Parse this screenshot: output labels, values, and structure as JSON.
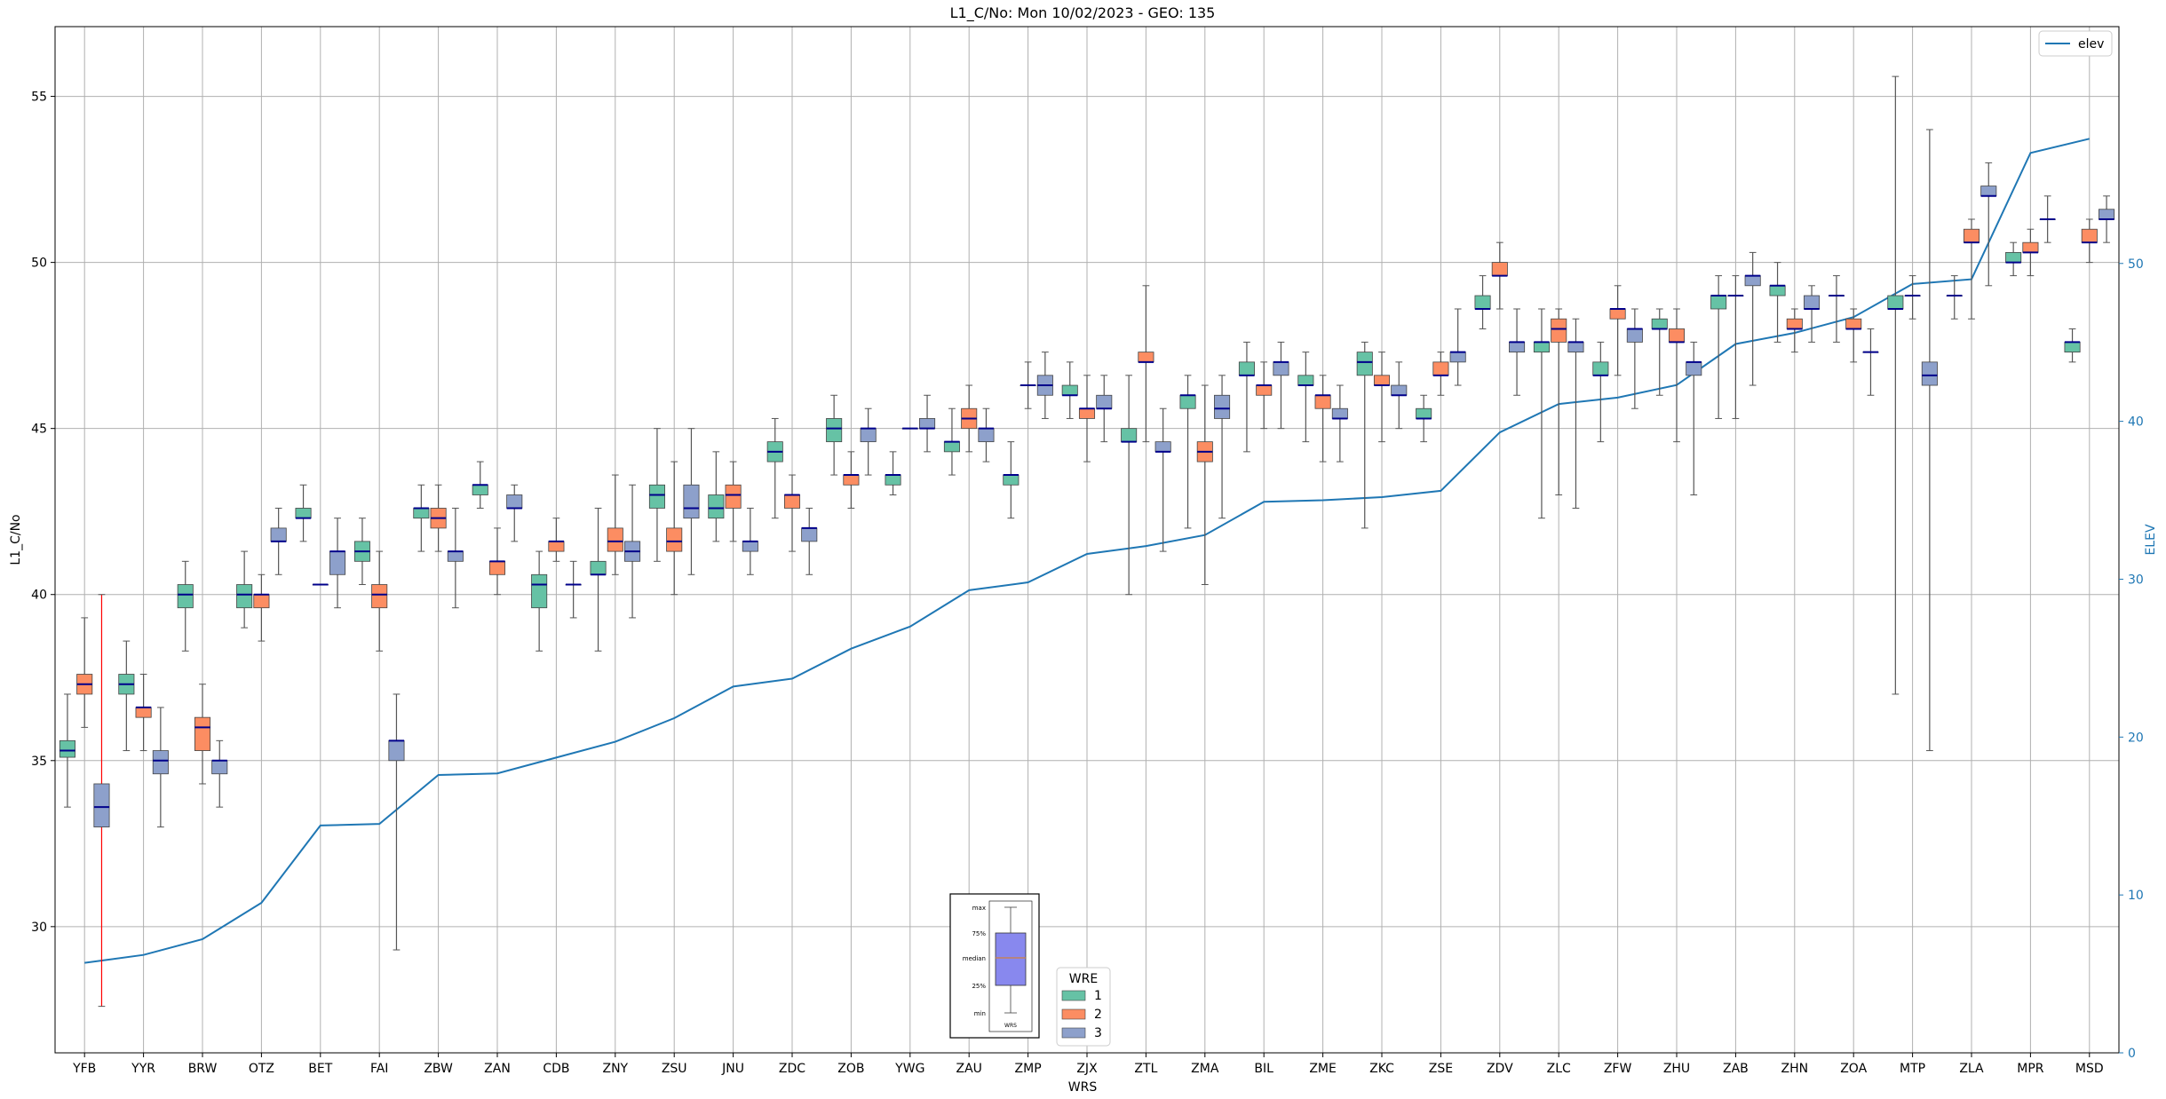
{
  "chart_data": {
    "type": "boxplot",
    "title": "L1_C/No: Mon 10/02/2023 - GEO: 135",
    "xlabel": "WRS",
    "ylabel": "L1_C/No",
    "ylabel_right": "ELEV",
    "ylim": [
      26.2,
      57.1
    ],
    "ylim_right": [
      0,
      65
    ],
    "yticks": [
      30,
      35,
      40,
      45,
      50,
      55
    ],
    "yticks_right": [
      0,
      10,
      20,
      30,
      40,
      50
    ],
    "grid": true,
    "colors": {
      "wre1": "#66c2a5",
      "wre2": "#fc8d62",
      "wre3": "#8da0cb",
      "elev": "#1f77b4",
      "median": "#00008b",
      "outlier_whisker": "#ff0000"
    },
    "legend_elev": {
      "label": "elev",
      "placement": "top-right"
    },
    "legend_wre": {
      "title": "WRE",
      "entries": [
        "1",
        "2",
        "3"
      ],
      "placement": "bottom-center"
    },
    "inset_key": {
      "labels": [
        "max",
        "75%",
        "median",
        "25%",
        "min"
      ],
      "xlabel": "WRS"
    },
    "categories": [
      "YFB",
      "YYR",
      "BRW",
      "OTZ",
      "BET",
      "FAI",
      "ZBW",
      "ZAN",
      "CDB",
      "ZNY",
      "ZSU",
      "JNU",
      "ZDC",
      "ZOB",
      "YWG",
      "ZAU",
      "ZMP",
      "ZJX",
      "ZTL",
      "ZMA",
      "BIL",
      "ZME",
      "ZKC",
      "ZSE",
      "ZDV",
      "ZLC",
      "ZFW",
      "ZHU",
      "ZAB",
      "ZHN",
      "ZOA",
      "MTP",
      "ZLA",
      "MPR",
      "MSD"
    ],
    "elev": [
      5.7,
      6.2,
      7.2,
      9.5,
      14.4,
      14.5,
      17.6,
      17.7,
      18.7,
      19.7,
      21.2,
      23.2,
      23.7,
      25.6,
      27.0,
      29.3,
      29.8,
      31.6,
      32.1,
      32.8,
      34.9,
      35.0,
      35.2,
      35.6,
      39.3,
      41.1,
      41.5,
      42.3,
      44.9,
      45.6,
      46.6,
      48.7,
      49.0,
      57.0,
      57.9
    ],
    "boxes": [
      {
        "wrs": "YFB",
        "wre": 1,
        "min": 33.6,
        "q1": 35.1,
        "median": 35.3,
        "q3": 35.6,
        "max": 37.0
      },
      {
        "wrs": "YFB",
        "wre": 2,
        "min": 36.0,
        "q1": 37.0,
        "median": 37.3,
        "q3": 37.6,
        "max": 39.3
      },
      {
        "wrs": "YFB",
        "wre": 3,
        "min": 27.6,
        "q1": 33.0,
        "median": 33.6,
        "q3": 34.3,
        "max": 40.0,
        "whisker_color": "red"
      },
      {
        "wrs": "YYR",
        "wre": 1,
        "min": 35.3,
        "q1": 37.0,
        "median": 37.3,
        "q3": 37.6,
        "max": 38.6
      },
      {
        "wrs": "YYR",
        "wre": 2,
        "min": 35.3,
        "q1": 36.3,
        "median": 36.6,
        "q3": 36.6,
        "max": 37.6
      },
      {
        "wrs": "YYR",
        "wre": 3,
        "min": 33.0,
        "q1": 34.6,
        "median": 35.0,
        "q3": 35.3,
        "max": 36.6
      },
      {
        "wrs": "BRW",
        "wre": 1,
        "min": 38.3,
        "q1": 39.6,
        "median": 40.0,
        "q3": 40.3,
        "max": 41.0
      },
      {
        "wrs": "BRW",
        "wre": 2,
        "min": 34.3,
        "q1": 35.3,
        "median": 36.0,
        "q3": 36.3,
        "max": 37.3
      },
      {
        "wrs": "BRW",
        "wre": 3,
        "min": 33.6,
        "q1": 34.6,
        "median": 35.0,
        "q3": 35.0,
        "max": 35.6
      },
      {
        "wrs": "OTZ",
        "wre": 1,
        "min": 39.0,
        "q1": 39.6,
        "median": 40.0,
        "q3": 40.3,
        "max": 41.3
      },
      {
        "wrs": "OTZ",
        "wre": 2,
        "min": 38.6,
        "q1": 39.6,
        "median": 40.0,
        "q3": 40.0,
        "max": 40.6
      },
      {
        "wrs": "OTZ",
        "wre": 3,
        "min": 40.6,
        "q1": 41.6,
        "median": 41.6,
        "q3": 42.0,
        "max": 42.6
      },
      {
        "wrs": "BET",
        "wre": 1,
        "min": 41.6,
        "q1": 42.3,
        "median": 42.3,
        "q3": 42.6,
        "max": 43.3
      },
      {
        "wrs": "BET",
        "wre": 2,
        "min": 40.3,
        "q1": 40.3,
        "median": 40.3,
        "q3": 40.3,
        "max": 40.3
      },
      {
        "wrs": "BET",
        "wre": 3,
        "min": 39.6,
        "q1": 40.6,
        "median": 41.3,
        "q3": 41.3,
        "max": 42.3
      },
      {
        "wrs": "FAI",
        "wre": 1,
        "min": 40.3,
        "q1": 41.0,
        "median": 41.3,
        "q3": 41.6,
        "max": 42.3
      },
      {
        "wrs": "FAI",
        "wre": 2,
        "min": 38.3,
        "q1": 39.6,
        "median": 40.0,
        "q3": 40.3,
        "max": 41.3
      },
      {
        "wrs": "FAI",
        "wre": 3,
        "min": 29.3,
        "q1": 35.0,
        "median": 35.6,
        "q3": 35.6,
        "max": 37.0
      },
      {
        "wrs": "ZBW",
        "wre": 1,
        "min": 41.3,
        "q1": 42.3,
        "median": 42.6,
        "q3": 42.6,
        "max": 43.3
      },
      {
        "wrs": "ZBW",
        "wre": 2,
        "min": 41.3,
        "q1": 42.0,
        "median": 42.3,
        "q3": 42.6,
        "max": 43.3
      },
      {
        "wrs": "ZBW",
        "wre": 3,
        "min": 39.6,
        "q1": 41.0,
        "median": 41.3,
        "q3": 41.3,
        "max": 42.6
      },
      {
        "wrs": "ZAN",
        "wre": 1,
        "min": 42.6,
        "q1": 43.0,
        "median": 43.3,
        "q3": 43.3,
        "max": 44.0
      },
      {
        "wrs": "ZAN",
        "wre": 2,
        "min": 40.0,
        "q1": 40.6,
        "median": 41.0,
        "q3": 41.0,
        "max": 42.0
      },
      {
        "wrs": "ZAN",
        "wre": 3,
        "min": 41.6,
        "q1": 42.6,
        "median": 42.6,
        "q3": 43.0,
        "max": 43.3
      },
      {
        "wrs": "CDB",
        "wre": 1,
        "min": 38.3,
        "q1": 39.6,
        "median": 40.3,
        "q3": 40.6,
        "max": 41.3
      },
      {
        "wrs": "CDB",
        "wre": 2,
        "min": 41.0,
        "q1": 41.3,
        "median": 41.6,
        "q3": 41.6,
        "max": 42.3
      },
      {
        "wrs": "CDB",
        "wre": 3,
        "min": 39.3,
        "q1": 40.3,
        "median": 40.3,
        "q3": 40.3,
        "max": 41.0
      },
      {
        "wrs": "ZNY",
        "wre": 1,
        "min": 38.3,
        "q1": 40.6,
        "median": 40.6,
        "q3": 41.0,
        "max": 42.6
      },
      {
        "wrs": "ZNY",
        "wre": 2,
        "min": 40.6,
        "q1": 41.3,
        "median": 41.6,
        "q3": 42.0,
        "max": 43.6
      },
      {
        "wrs": "ZNY",
        "wre": 3,
        "min": 39.3,
        "q1": 41.0,
        "median": 41.3,
        "q3": 41.6,
        "max": 43.3
      },
      {
        "wrs": "ZSU",
        "wre": 1,
        "min": 41.0,
        "q1": 42.6,
        "median": 43.0,
        "q3": 43.3,
        "max": 45.0
      },
      {
        "wrs": "ZSU",
        "wre": 2,
        "min": 40.0,
        "q1": 41.3,
        "median": 41.6,
        "q3": 42.0,
        "max": 44.0
      },
      {
        "wrs": "ZSU",
        "wre": 3,
        "min": 40.6,
        "q1": 42.3,
        "median": 42.6,
        "q3": 43.3,
        "max": 45.0
      },
      {
        "wrs": "JNU",
        "wre": 1,
        "min": 41.6,
        "q1": 42.3,
        "median": 42.6,
        "q3": 43.0,
        "max": 44.3
      },
      {
        "wrs": "JNU",
        "wre": 2,
        "min": 41.6,
        "q1": 42.6,
        "median": 43.0,
        "q3": 43.3,
        "max": 44.0
      },
      {
        "wrs": "JNU",
        "wre": 3,
        "min": 40.6,
        "q1": 41.3,
        "median": 41.6,
        "q3": 41.6,
        "max": 42.6
      },
      {
        "wrs": "ZDC",
        "wre": 1,
        "min": 42.3,
        "q1": 44.0,
        "median": 44.3,
        "q3": 44.6,
        "max": 45.3
      },
      {
        "wrs": "ZDC",
        "wre": 2,
        "min": 41.3,
        "q1": 42.6,
        "median": 43.0,
        "q3": 43.0,
        "max": 43.6
      },
      {
        "wrs": "ZDC",
        "wre": 3,
        "min": 40.6,
        "q1": 41.6,
        "median": 42.0,
        "q3": 42.0,
        "max": 42.6
      },
      {
        "wrs": "ZOB",
        "wre": 1,
        "min": 43.6,
        "q1": 44.6,
        "median": 45.0,
        "q3": 45.3,
        "max": 46.0
      },
      {
        "wrs": "ZOB",
        "wre": 2,
        "min": 42.6,
        "q1": 43.3,
        "median": 43.6,
        "q3": 43.6,
        "max": 44.3
      },
      {
        "wrs": "ZOB",
        "wre": 3,
        "min": 43.6,
        "q1": 44.6,
        "median": 45.0,
        "q3": 45.0,
        "max": 45.6
      },
      {
        "wrs": "YWG",
        "wre": 1,
        "min": 43.0,
        "q1": 43.3,
        "median": 43.6,
        "q3": 43.6,
        "max": 44.3
      },
      {
        "wrs": "YWG",
        "wre": 2,
        "min": 45.0,
        "q1": 45.0,
        "median": 45.0,
        "q3": 45.0,
        "max": 45.0
      },
      {
        "wrs": "YWG",
        "wre": 3,
        "min": 44.3,
        "q1": 45.0,
        "median": 45.0,
        "q3": 45.3,
        "max": 46.0
      },
      {
        "wrs": "ZAU",
        "wre": 1,
        "min": 43.6,
        "q1": 44.3,
        "median": 44.6,
        "q3": 44.6,
        "max": 45.6
      },
      {
        "wrs": "ZAU",
        "wre": 2,
        "min": 44.3,
        "q1": 45.0,
        "median": 45.3,
        "q3": 45.6,
        "max": 46.3
      },
      {
        "wrs": "ZAU",
        "wre": 3,
        "min": 44.0,
        "q1": 44.6,
        "median": 45.0,
        "q3": 45.0,
        "max": 45.6
      },
      {
        "wrs": "ZMP",
        "wre": 1,
        "min": 42.3,
        "q1": 43.3,
        "median": 43.6,
        "q3": 43.6,
        "max": 44.6
      },
      {
        "wrs": "ZMP",
        "wre": 2,
        "min": 45.6,
        "q1": 46.3,
        "median": 46.3,
        "q3": 46.3,
        "max": 47.0
      },
      {
        "wrs": "ZMP",
        "wre": 3,
        "min": 45.3,
        "q1": 46.0,
        "median": 46.3,
        "q3": 46.6,
        "max": 47.3
      },
      {
        "wrs": "ZJX",
        "wre": 1,
        "min": 45.3,
        "q1": 46.0,
        "median": 46.0,
        "q3": 46.3,
        "max": 47.0
      },
      {
        "wrs": "ZJX",
        "wre": 2,
        "min": 44.0,
        "q1": 45.3,
        "median": 45.6,
        "q3": 45.6,
        "max": 46.6
      },
      {
        "wrs": "ZJX",
        "wre": 3,
        "min": 44.6,
        "q1": 45.6,
        "median": 45.6,
        "q3": 46.0,
        "max": 46.6
      },
      {
        "wrs": "ZTL",
        "wre": 1,
        "min": 40.0,
        "q1": 44.6,
        "median": 44.6,
        "q3": 45.0,
        "max": 46.6
      },
      {
        "wrs": "ZTL",
        "wre": 2,
        "min": 44.6,
        "q1": 47.0,
        "median": 47.0,
        "q3": 47.3,
        "max": 49.3
      },
      {
        "wrs": "ZTL",
        "wre": 3,
        "min": 41.3,
        "q1": 44.3,
        "median": 44.3,
        "q3": 44.6,
        "max": 45.6
      },
      {
        "wrs": "ZMA",
        "wre": 1,
        "min": 42.0,
        "q1": 45.6,
        "median": 46.0,
        "q3": 46.0,
        "max": 46.6
      },
      {
        "wrs": "ZMA",
        "wre": 2,
        "min": 40.3,
        "q1": 44.0,
        "median": 44.3,
        "q3": 44.6,
        "max": 46.3
      },
      {
        "wrs": "ZMA",
        "wre": 3,
        "min": 42.3,
        "q1": 45.3,
        "median": 45.6,
        "q3": 46.0,
        "max": 46.6
      },
      {
        "wrs": "BIL",
        "wre": 1,
        "min": 44.3,
        "q1": 46.6,
        "median": 46.6,
        "q3": 47.0,
        "max": 47.6
      },
      {
        "wrs": "BIL",
        "wre": 2,
        "min": 45.0,
        "q1": 46.0,
        "median": 46.3,
        "q3": 46.3,
        "max": 47.0
      },
      {
        "wrs": "BIL",
        "wre": 3,
        "min": 45.0,
        "q1": 46.6,
        "median": 47.0,
        "q3": 47.0,
        "max": 47.6
      },
      {
        "wrs": "ZME",
        "wre": 1,
        "min": 44.6,
        "q1": 46.3,
        "median": 46.3,
        "q3": 46.6,
        "max": 47.3
      },
      {
        "wrs": "ZME",
        "wre": 2,
        "min": 44.0,
        "q1": 45.6,
        "median": 46.0,
        "q3": 46.0,
        "max": 46.6
      },
      {
        "wrs": "ZME",
        "wre": 3,
        "min": 44.0,
        "q1": 45.3,
        "median": 45.3,
        "q3": 45.6,
        "max": 46.3
      },
      {
        "wrs": "ZKC",
        "wre": 1,
        "min": 42.0,
        "q1": 46.6,
        "median": 47.0,
        "q3": 47.3,
        "max": 47.6
      },
      {
        "wrs": "ZKC",
        "wre": 2,
        "min": 44.6,
        "q1": 46.3,
        "median": 46.3,
        "q3": 46.6,
        "max": 47.3
      },
      {
        "wrs": "ZKC",
        "wre": 3,
        "min": 45.0,
        "q1": 46.0,
        "median": 46.0,
        "q3": 46.3,
        "max": 47.0
      },
      {
        "wrs": "ZSE",
        "wre": 1,
        "min": 44.6,
        "q1": 45.3,
        "median": 45.3,
        "q3": 45.6,
        "max": 46.0
      },
      {
        "wrs": "ZSE",
        "wre": 2,
        "min": 46.0,
        "q1": 46.6,
        "median": 46.6,
        "q3": 47.0,
        "max": 47.3
      },
      {
        "wrs": "ZSE",
        "wre": 3,
        "min": 46.3,
        "q1": 47.0,
        "median": 47.3,
        "q3": 47.3,
        "max": 48.6
      },
      {
        "wrs": "ZDV",
        "wre": 1,
        "min": 48.0,
        "q1": 48.6,
        "median": 48.6,
        "q3": 49.0,
        "max": 49.6
      },
      {
        "wrs": "ZDV",
        "wre": 2,
        "min": 48.6,
        "q1": 49.6,
        "median": 49.6,
        "q3": 50.0,
        "max": 50.6
      },
      {
        "wrs": "ZDV",
        "wre": 3,
        "min": 46.0,
        "q1": 47.3,
        "median": 47.6,
        "q3": 47.6,
        "max": 48.6
      },
      {
        "wrs": "ZLC",
        "wre": 1,
        "min": 42.3,
        "q1": 47.3,
        "median": 47.6,
        "q3": 47.6,
        "max": 48.6
      },
      {
        "wrs": "ZLC",
        "wre": 2,
        "min": 43.0,
        "q1": 47.6,
        "median": 48.0,
        "q3": 48.3,
        "max": 48.6
      },
      {
        "wrs": "ZLC",
        "wre": 3,
        "min": 42.6,
        "q1": 47.3,
        "median": 47.6,
        "q3": 47.6,
        "max": 48.3
      },
      {
        "wrs": "ZFW",
        "wre": 1,
        "min": 44.6,
        "q1": 46.6,
        "median": 46.6,
        "q3": 47.0,
        "max": 47.6
      },
      {
        "wrs": "ZFW",
        "wre": 2,
        "min": 46.6,
        "q1": 48.3,
        "median": 48.6,
        "q3": 48.6,
        "max": 49.3
      },
      {
        "wrs": "ZFW",
        "wre": 3,
        "min": 45.6,
        "q1": 47.6,
        "median": 48.0,
        "q3": 48.0,
        "max": 48.6
      },
      {
        "wrs": "ZHU",
        "wre": 1,
        "min": 46.0,
        "q1": 48.0,
        "median": 48.0,
        "q3": 48.3,
        "max": 48.6
      },
      {
        "wrs": "ZHU",
        "wre": 2,
        "min": 44.6,
        "q1": 47.6,
        "median": 47.6,
        "q3": 48.0,
        "max": 48.6
      },
      {
        "wrs": "ZHU",
        "wre": 3,
        "min": 43.0,
        "q1": 46.6,
        "median": 47.0,
        "q3": 47.0,
        "max": 47.6
      },
      {
        "wrs": "ZAB",
        "wre": 1,
        "min": 45.3,
        "q1": 48.6,
        "median": 49.0,
        "q3": 49.0,
        "max": 49.6
      },
      {
        "wrs": "ZAB",
        "wre": 2,
        "min": 45.3,
        "q1": 49.0,
        "median": 49.0,
        "q3": 49.0,
        "max": 49.6
      },
      {
        "wrs": "ZAB",
        "wre": 3,
        "min": 46.3,
        "q1": 49.3,
        "median": 49.6,
        "q3": 49.6,
        "max": 50.3
      },
      {
        "wrs": "ZHN",
        "wre": 1,
        "min": 47.6,
        "q1": 49.0,
        "median": 49.3,
        "q3": 49.3,
        "max": 50.0
      },
      {
        "wrs": "ZHN",
        "wre": 2,
        "min": 47.3,
        "q1": 48.0,
        "median": 48.0,
        "q3": 48.3,
        "max": 48.6
      },
      {
        "wrs": "ZHN",
        "wre": 3,
        "min": 47.6,
        "q1": 48.6,
        "median": 48.6,
        "q3": 49.0,
        "max": 49.3
      },
      {
        "wrs": "ZOA",
        "wre": 1,
        "min": 47.6,
        "q1": 49.0,
        "median": 49.0,
        "q3": 49.0,
        "max": 49.6
      },
      {
        "wrs": "ZOA",
        "wre": 2,
        "min": 47.0,
        "q1": 48.0,
        "median": 48.0,
        "q3": 48.3,
        "max": 48.6
      },
      {
        "wrs": "ZOA",
        "wre": 3,
        "min": 46.0,
        "q1": 47.3,
        "median": 47.3,
        "q3": 47.3,
        "max": 48.0
      },
      {
        "wrs": "MTP",
        "wre": 1,
        "min": 37.0,
        "q1": 48.6,
        "median": 48.6,
        "q3": 49.0,
        "max": 55.6
      },
      {
        "wrs": "MTP",
        "wre": 2,
        "min": 48.3,
        "q1": 49.0,
        "median": 49.0,
        "q3": 49.0,
        "max": 49.6
      },
      {
        "wrs": "MTP",
        "wre": 3,
        "min": 35.3,
        "q1": 46.3,
        "median": 46.6,
        "q3": 47.0,
        "max": 54.0
      },
      {
        "wrs": "ZLA",
        "wre": 1,
        "min": 48.3,
        "q1": 49.0,
        "median": 49.0,
        "q3": 49.0,
        "max": 49.6
      },
      {
        "wrs": "ZLA",
        "wre": 2,
        "min": 48.3,
        "q1": 50.6,
        "median": 50.6,
        "q3": 51.0,
        "max": 51.3
      },
      {
        "wrs": "ZLA",
        "wre": 3,
        "min": 49.3,
        "q1": 52.0,
        "median": 52.0,
        "q3": 52.3,
        "max": 53.0
      },
      {
        "wrs": "MPR",
        "wre": 1,
        "min": 49.6,
        "q1": 50.0,
        "median": 50.0,
        "q3": 50.3,
        "max": 50.6
      },
      {
        "wrs": "MPR",
        "wre": 2,
        "min": 49.6,
        "q1": 50.3,
        "median": 50.3,
        "q3": 50.6,
        "max": 51.0
      },
      {
        "wrs": "MPR",
        "wre": 3,
        "min": 50.6,
        "q1": 51.3,
        "median": 51.3,
        "q3": 51.3,
        "max": 52.0
      },
      {
        "wrs": "MSD",
        "wre": 1,
        "min": 47.0,
        "q1": 47.3,
        "median": 47.6,
        "q3": 47.6,
        "max": 48.0
      },
      {
        "wrs": "MSD",
        "wre": 2,
        "min": 50.0,
        "q1": 50.6,
        "median": 50.6,
        "q3": 51.0,
        "max": 51.3
      },
      {
        "wrs": "MSD",
        "wre": 3,
        "min": 50.6,
        "q1": 51.3,
        "median": 51.3,
        "q3": 51.6,
        "max": 52.0
      }
    ]
  }
}
